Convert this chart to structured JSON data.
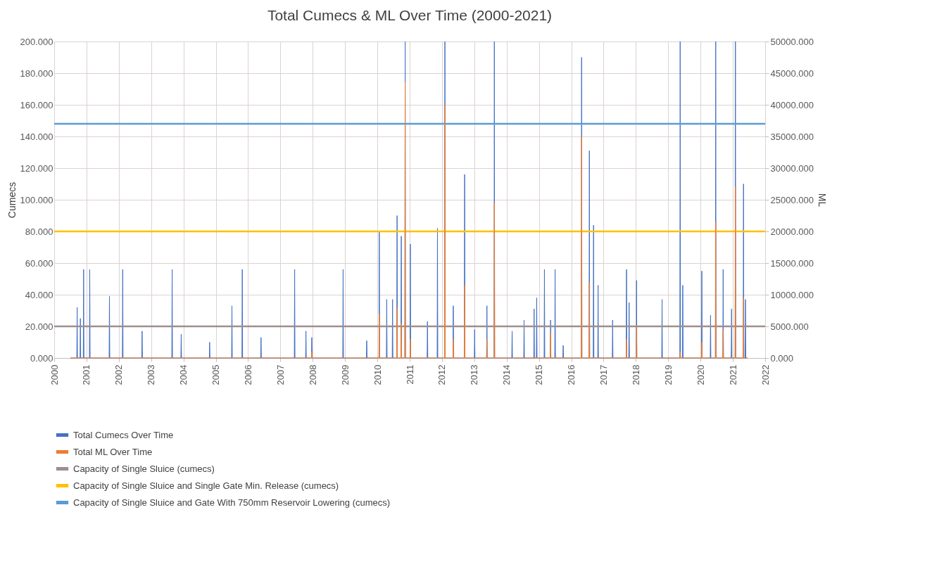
{
  "chart_data": {
    "type": "area",
    "title": "Total Cumecs & ML Over Time (2000-2021)",
    "ylabel": "Cumecs",
    "y2label": "ML",
    "xlim": [
      2000,
      2022
    ],
    "xticks": [
      2000,
      2001,
      2002,
      2003,
      2004,
      2005,
      2006,
      2007,
      2008,
      2009,
      2010,
      2011,
      2012,
      2013,
      2014,
      2015,
      2016,
      2017,
      2018,
      2019,
      2020,
      2021,
      2022
    ],
    "ylim": [
      0,
      200
    ],
    "yticks": [
      {
        "value": 0,
        "label": "0.000"
      },
      {
        "value": 20,
        "label": "20.000"
      },
      {
        "value": 40,
        "label": "40.000"
      },
      {
        "value": 60,
        "label": "60.000"
      },
      {
        "value": 80,
        "label": "80.000"
      },
      {
        "value": 100,
        "label": "100.000"
      },
      {
        "value": 120,
        "label": "120.000"
      },
      {
        "value": 140,
        "label": "140.000"
      },
      {
        "value": 160,
        "label": "160.000"
      },
      {
        "value": 180,
        "label": "180.000"
      },
      {
        "value": 200,
        "label": "200.000"
      }
    ],
    "y2lim": [
      0,
      50000
    ],
    "y2ticks": [
      {
        "value": 0,
        "label": "0.000"
      },
      {
        "value": 5000,
        "label": "5000.000"
      },
      {
        "value": 10000,
        "label": "10000.000"
      },
      {
        "value": 15000,
        "label": "15000.000"
      },
      {
        "value": 20000,
        "label": "20000.000"
      },
      {
        "value": 25000,
        "label": "25000.000"
      },
      {
        "value": 30000,
        "label": "30000.000"
      },
      {
        "value": 35000,
        "label": "35000.000"
      },
      {
        "value": 40000,
        "label": "40000.000"
      },
      {
        "value": 45000,
        "label": "45000.000"
      },
      {
        "value": 50000,
        "label": "50000.000"
      }
    ],
    "grid": true,
    "legend": "bottom",
    "series": [
      {
        "name": "Total Cumecs Over Time",
        "color": "#4472c4",
        "x": [
          2000.5,
          2000.7,
          2000.71,
          2000.72,
          2000.8,
          2000.81,
          2000.82,
          2000.9,
          2000.91,
          2000.92,
          2001.09,
          2001.1,
          2001.11,
          2001.7,
          2001.71,
          2001.72,
          2002.11,
          2002.12,
          2002.13,
          2002.71,
          2002.72,
          2002.73,
          2003.64,
          2003.65,
          2003.66,
          2003.92,
          2003.93,
          2003.94,
          2004.8,
          2004.81,
          2004.82,
          2005.49,
          2005.5,
          2005.51,
          2005.81,
          2005.82,
          2005.83,
          2006.39,
          2006.4,
          2006.41,
          2007.43,
          2007.44,
          2007.45,
          2007.78,
          2007.79,
          2007.8,
          2007.96,
          2007.97,
          2007.98,
          2008.93,
          2008.94,
          2008.95,
          2009.66,
          2009.67,
          2009.68,
          2010.05,
          2010.06,
          2010.07,
          2010.28,
          2010.29,
          2010.3,
          2010.46,
          2010.47,
          2010.48,
          2010.6,
          2010.61,
          2010.62,
          2010.73,
          2010.74,
          2010.75,
          2010.85,
          2010.86,
          2010.87,
          2011.01,
          2011.02,
          2011.03,
          2011.54,
          2011.55,
          2011.56,
          2011.85,
          2011.86,
          2011.87,
          2012.08,
          2012.09,
          2012.1,
          2012.34,
          2012.35,
          2012.36,
          2012.69,
          2012.7,
          2012.71,
          2013.0,
          2013.01,
          2013.02,
          2013.38,
          2013.39,
          2013.4,
          2013.61,
          2013.62,
          2013.63,
          2014.16,
          2014.17,
          2014.18,
          2014.53,
          2014.54,
          2014.55,
          2014.84,
          2014.85,
          2014.86,
          2014.92,
          2014.93,
          2014.94,
          2015.16,
          2015.17,
          2015.18,
          2015.35,
          2015.36,
          2015.37,
          2015.49,
          2015.5,
          2015.51,
          2015.74,
          2015.75,
          2015.76,
          2016.31,
          2016.32,
          2016.33,
          2016.55,
          2016.56,
          2016.57,
          2016.68,
          2016.69,
          2016.7,
          2016.82,
          2016.83,
          2016.84,
          2017.27,
          2017.28,
          2017.29,
          2017.7,
          2017.71,
          2017.72,
          2017.78,
          2017.79,
          2017.8,
          2018.01,
          2018.02,
          2018.03,
          2018.8,
          2018.81,
          2018.82,
          2019.36,
          2019.37,
          2019.38,
          2019.44,
          2019.45,
          2019.46,
          2020.03,
          2020.04,
          2020.05,
          2020.3,
          2020.31,
          2020.32,
          2020.46,
          2020.47,
          2020.48,
          2020.69,
          2020.7,
          2020.71,
          2020.95,
          2020.96,
          2020.97,
          2021.07,
          2021.08,
          2021.09,
          2021.32,
          2021.33,
          2021.34,
          2021.38,
          2021.39,
          2021.4,
          2021.45
        ],
        "values": [
          0,
          0,
          32,
          0,
          0,
          25,
          0,
          0,
          56,
          0,
          0,
          56,
          0,
          0,
          39,
          0,
          0,
          56,
          0,
          0,
          17,
          0,
          0,
          56,
          0,
          0,
          15,
          0,
          0,
          10,
          0,
          0,
          33,
          0,
          0,
          56,
          0,
          0,
          13,
          0,
          0,
          56,
          0,
          0,
          17,
          0,
          0,
          13,
          0,
          0,
          56,
          0,
          0,
          11,
          0,
          0,
          80,
          0,
          0,
          37,
          0,
          0,
          37,
          0,
          0,
          90,
          0,
          0,
          77,
          0,
          0,
          200,
          0,
          0,
          72,
          0,
          0,
          23,
          0,
          0,
          82,
          0,
          0,
          200,
          0,
          0,
          33,
          0,
          0,
          116,
          0,
          0,
          18,
          0,
          0,
          33,
          0,
          0,
          200,
          0,
          0,
          17,
          0,
          0,
          24,
          0,
          0,
          31,
          0,
          0,
          38,
          0,
          0,
          56,
          0,
          0,
          24,
          0,
          0,
          56,
          0,
          0,
          8,
          0,
          0,
          190,
          0,
          0,
          131,
          0,
          0,
          84,
          0,
          0,
          46,
          0,
          0,
          24,
          0,
          0,
          56,
          0,
          0,
          35,
          0,
          0,
          49,
          0,
          0,
          37,
          0,
          0,
          200,
          0,
          0,
          46,
          0,
          0,
          55,
          0,
          0,
          27,
          0,
          0,
          200,
          0,
          0,
          56,
          0,
          0,
          31,
          0,
          0,
          200,
          0,
          0,
          110,
          0,
          0,
          37,
          0,
          0
        ]
      },
      {
        "name": "Total ML Over Time",
        "color": "#ed7d31",
        "axis": "y2",
        "x": [
          2000.5,
          2007.96,
          2007.97,
          2007.98,
          2010.05,
          2010.06,
          2010.07,
          2010.6,
          2010.61,
          2010.62,
          2010.73,
          2010.74,
          2010.75,
          2010.85,
          2010.86,
          2010.87,
          2011.01,
          2011.02,
          2011.03,
          2012.08,
          2012.09,
          2012.1,
          2012.34,
          2012.35,
          2012.36,
          2012.69,
          2012.7,
          2012.71,
          2013.38,
          2013.39,
          2013.4,
          2013.61,
          2013.62,
          2013.63,
          2015.35,
          2015.36,
          2015.37,
          2016.31,
          2016.32,
          2016.33,
          2016.55,
          2016.56,
          2016.57,
          2017.7,
          2017.71,
          2017.72,
          2018.01,
          2018.02,
          2018.03,
          2019.36,
          2019.37,
          2019.38,
          2020.03,
          2020.04,
          2020.05,
          2020.46,
          2020.47,
          2020.48,
          2020.69,
          2020.7,
          2020.71,
          2021.07,
          2021.08,
          2021.09,
          2021.32,
          2021.33,
          2021.34,
          2021.45
        ],
        "values": [
          0,
          0,
          1000,
          0,
          0,
          7000,
          0,
          0,
          8000,
          0,
          0,
          5500,
          0,
          0,
          43500,
          0,
          0,
          3000,
          0,
          0,
          40000,
          0,
          0,
          3000,
          0,
          0,
          11500,
          0,
          0,
          3000,
          0,
          0,
          24500,
          0,
          0,
          4000,
          0,
          0,
          35000,
          0,
          0,
          12000,
          0,
          0,
          3000,
          0,
          0,
          5000,
          0,
          0,
          1000,
          0,
          0,
          2500,
          0,
          0,
          21500,
          0,
          0,
          4500,
          0,
          0,
          27000,
          0,
          0,
          9500,
          0,
          0
        ]
      }
    ],
    "ref_lines": [
      {
        "axis": "y",
        "value": 20,
        "label": "Capacity of Single Sluice (cumecs)",
        "color": "#9e8e8e"
      },
      {
        "axis": "y",
        "value": 80,
        "label": "Capacity of Single Sluice and Single Gate Min. Release (cumecs)",
        "color": "#ffc000"
      },
      {
        "axis": "y",
        "value": 148,
        "label": "Capacity of Single Sluice and Gate With 750mm Reservoir Lowering (cumecs)",
        "color": "#5b9bd5"
      }
    ]
  }
}
